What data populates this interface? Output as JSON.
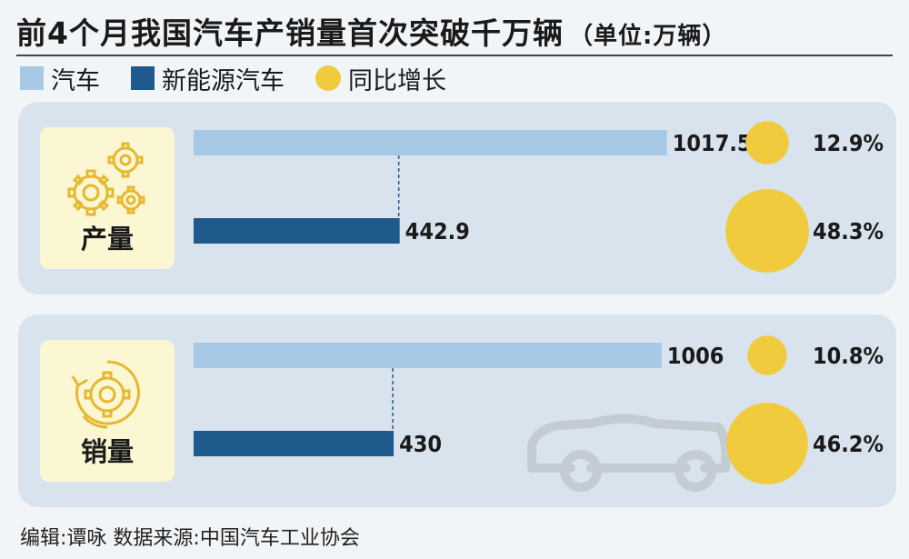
{
  "title": "前4个月我国汽车产销量首次突破千万辆",
  "unit": "（单位:万辆）",
  "legend": [
    {
      "label": "汽车",
      "color": "#a8c9e6",
      "shape": "square"
    },
    {
      "label": "新能源汽车",
      "color": "#1f5a8c",
      "shape": "square"
    },
    {
      "label": "同比增长",
      "color": "#efcb3d",
      "shape": "circle"
    }
  ],
  "colors": {
    "car": "#a8c9e6",
    "nev": "#1f5a8c",
    "growth": "#efcb3d",
    "panel": "#d9e3ed",
    "badge": "#fbf7d3"
  },
  "icons": {
    "production": "gears-icon",
    "sales": "recycle-gear-icon",
    "decoration": "car-outline-icon"
  },
  "chart_data": {
    "type": "bar",
    "categories": [
      "产量",
      "销量"
    ],
    "series": [
      {
        "name": "汽车",
        "values": [
          1017.5,
          1006
        ],
        "labels": [
          "1017.5",
          "1006"
        ],
        "growth": [
          12.9,
          10.8
        ],
        "growth_labels": [
          "12.9%",
          "10.8%"
        ]
      },
      {
        "name": "新能源汽车",
        "values": [
          442.9,
          430
        ],
        "labels": [
          "442.9",
          "430"
        ],
        "growth": [
          48.3,
          46.2
        ],
        "growth_labels": [
          "48.3%",
          "46.2%"
        ]
      }
    ],
    "xlabel": "",
    "ylabel": ""
  },
  "footer": "编辑:谭咏   数据来源:中国汽车工业协会"
}
